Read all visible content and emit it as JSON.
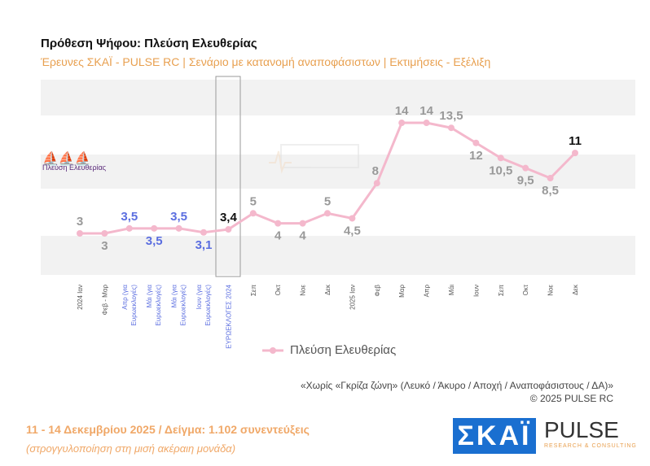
{
  "header": {
    "title": "Πρόθεση Ψήφου:  Πλεύση Ελευθερίας",
    "subtitle": "Έρευνες ΣΚΑΪ - PULSE RC  |  Σενάριο με κατανομή αναποφάσιστων  |  Εκτιμήσεις - Εξέλιξη"
  },
  "chart_data": {
    "type": "line",
    "categories": [
      "2024 Ιαν",
      "Φεβ - Μαρ",
      "Απρ (για Ευρωεκλογές)",
      "Μάι (για Ευρωεκλογές)",
      "Μάι (για Ευρωεκλογές)",
      "Ιουν (για Ευρωεκλογές)",
      "ΕΥΡΩΕΚΛΟΓΕΣ 2024",
      "Σεπ",
      "Οκτ",
      "Νοε",
      "Δεκ",
      "2025 Ιαν",
      "Φεβ",
      "Μαρ",
      "Απρ",
      "Μάι",
      "Ιουν",
      "Σεπ",
      "Οκτ",
      "Νοε",
      "Δεκ"
    ],
    "series": [
      {
        "name": "Πλεύση Ελευθερίας",
        "values": [
          3,
          3,
          3.5,
          3.5,
          3.5,
          3.1,
          3.4,
          5,
          4,
          4,
          5,
          4.5,
          8,
          14,
          14,
          13.5,
          12,
          10.5,
          9.5,
          8.5,
          11
        ],
        "labels": [
          "3",
          "3",
          "3,5",
          "3,5",
          "3,5",
          "3,1",
          "3,4",
          "5",
          "4",
          "4",
          "5",
          "4,5",
          "8",
          "14",
          "14",
          "13,5",
          "12",
          "10,5",
          "9,5",
          "8,5",
          "11"
        ]
      }
    ],
    "line_color": "#f4b8cc",
    "label_colors": {
      "default": "#999999",
      "euro_polls": "#5b6ee0",
      "highlight": "#111111"
    },
    "legend": "bottom"
  },
  "brand": {
    "left_logo": "Πλεύση Ελευθερίας",
    "skai": "ΣΚΑΪ",
    "pulse": "PULSE",
    "pulse_sub": "RESEARCH & CONSULTING"
  },
  "note": {
    "line1": "«Χωρίς «Γκρίζα ζώνη»  (Λευκό / Άκυρο / Αποχή / Αναποφάσιστους / ΔΑ)»",
    "line2": "©  2025  PULSE RC"
  },
  "footer": {
    "dates": "11 - 14 Δεκεμβρίου 2025  /  Δείγμα:  1.102 συνεντεύξεις",
    "rounding": "(στρογγυλοποίηση στη μισή ακέραιη μονάδα)"
  }
}
